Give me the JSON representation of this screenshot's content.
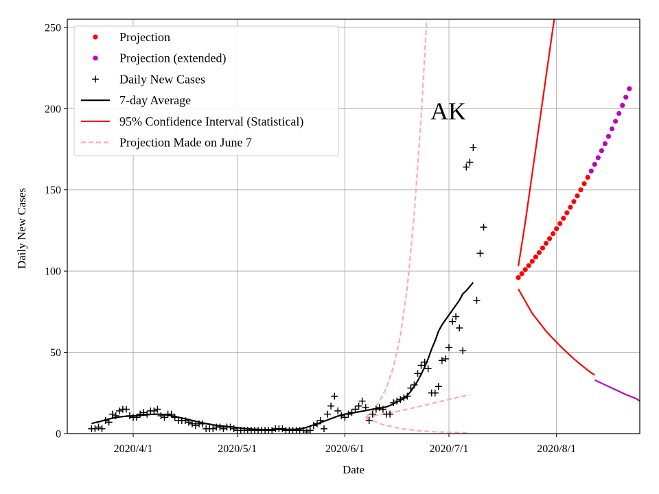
{
  "chart_data": {
    "type": "line",
    "title": "",
    "annotation": "AK",
    "xlabel": "Date",
    "ylabel": "Daily New Cases",
    "xlim": [
      "2020-03-13",
      "2020-08-25"
    ],
    "ylim": [
      0,
      255
    ],
    "grid": true,
    "legend_position": "top-left",
    "x_tick_labels": [
      "2020/4/1",
      "2020/5/1",
      "2020/6/1",
      "2020/7/1",
      "2020/8/1"
    ],
    "x_tick_dates": [
      "2020-04-01",
      "2020-05-01",
      "2020-06-01",
      "2020-07-01",
      "2020-08-01"
    ],
    "y_ticks": [
      0,
      50,
      100,
      150,
      200,
      250
    ],
    "colors": {
      "projection": "#ff0000",
      "projection_extended": "#bf00bf",
      "cases": "#000000",
      "average": "#000000",
      "ci": "#ff0000",
      "ci_extended": "#bf00bf",
      "june7": "#ffaaaa"
    },
    "legend": [
      {
        "label": "Projection",
        "kind": "dot",
        "color": "#ff0000"
      },
      {
        "label": "Projection (extended)",
        "kind": "dot",
        "color": "#bf00bf"
      },
      {
        "label": "Daily New Cases",
        "kind": "plus",
        "color": "#000000"
      },
      {
        "label": "7-day Average",
        "kind": "line",
        "color": "#000000"
      },
      {
        "label": "95% Confidence Interval (Statistical)",
        "kind": "line",
        "color": "#ff0000"
      },
      {
        "label": "Projection Made on June 7",
        "kind": "dash",
        "color": "#ffaaaa"
      }
    ],
    "daily_new_cases": {
      "start_date": "2020-03-20",
      "values": [
        3,
        3,
        4,
        3,
        8,
        7,
        12,
        11,
        14,
        15,
        15,
        11,
        10,
        10,
        12,
        13,
        12,
        14,
        14,
        15,
        11,
        10,
        12,
        12,
        10,
        8,
        8,
        8,
        7,
        6,
        5,
        6,
        6,
        3,
        3,
        3,
        4,
        4,
        3,
        4,
        4,
        3,
        2,
        2,
        2,
        2,
        2,
        2,
        2,
        2,
        2,
        2,
        2,
        3,
        3,
        3,
        2,
        2,
        2,
        2,
        2,
        2,
        1,
        2,
        5,
        6,
        8,
        3,
        12,
        17,
        23,
        14,
        11,
        10,
        12,
        13,
        15,
        17,
        20,
        16,
        8,
        12,
        15,
        16,
        15,
        12,
        12,
        19,
        20,
        21,
        22,
        23,
        28,
        30,
        37,
        42,
        44,
        40,
        25,
        25,
        29,
        45,
        46,
        53,
        69,
        72,
        65,
        51,
        164,
        167,
        176,
        82,
        111,
        127
      ]
    },
    "seven_day_average": {
      "start_date": "2020-03-20",
      "values": [
        6.2,
        6.8,
        7.2,
        7.8,
        8.5,
        9,
        9.5,
        9.9,
        10.2,
        10.5,
        10.7,
        10.8,
        10.9,
        11,
        11.2,
        11.4,
        11.6,
        11.8,
        11.9,
        12,
        11.9,
        11.7,
        11.4,
        11,
        10.6,
        10.1,
        9.6,
        9.1,
        8.6,
        8.1,
        7.6,
        7.1,
        6.6,
        6.2,
        5.8,
        5.4,
        5.1,
        4.8,
        4.6,
        4.4,
        4.2,
        4,
        3.7,
        3.4,
        3.2,
        3,
        2.8,
        2.7,
        2.6,
        2.5,
        2.5,
        2.5,
        2.5,
        2.5,
        2.6,
        2.6,
        2.6,
        2.6,
        2.6,
        2.7,
        2.9,
        3.3,
        3.9,
        4.6,
        5.3,
        6,
        6.8,
        7.6,
        8.4,
        9.2,
        10,
        10.8,
        11.5,
        12,
        12.3,
        12.6,
        13,
        13.4,
        13.8,
        14.2,
        14.6,
        15,
        15.3,
        15.6,
        16,
        16.5,
        17.3,
        18.3,
        19.4,
        20.5,
        21.7,
        23.5,
        26,
        29,
        32.5,
        36.5,
        41,
        46,
        52,
        57,
        63,
        67,
        70,
        73,
        76,
        79,
        82,
        86,
        88,
        90.5,
        93
      ]
    },
    "projection": {
      "start_date": "2020-07-21",
      "values": [
        96,
        98.4,
        100.9,
        103.4,
        106,
        108.7,
        111.4,
        114.2,
        117.1,
        120,
        123,
        126.1,
        129.3,
        132.5,
        135.9,
        139.3,
        142.8,
        146.3,
        150,
        153.8,
        157.7
      ]
    },
    "projection_extended": {
      "start_date": "2020-08-11",
      "values": [
        161.6,
        165.7,
        169.8,
        174.1,
        178.4,
        182.9,
        187.5,
        192.2,
        197,
        202,
        207,
        212.2
      ]
    },
    "ci_upper": {
      "start_date": "2020-07-21",
      "points": [
        [
          0,
          103
        ],
        [
          2,
          130
        ],
        [
          4,
          160
        ],
        [
          6,
          190
        ],
        [
          8,
          220
        ],
        [
          10,
          250
        ],
        [
          11,
          263
        ]
      ]
    },
    "ci_lower": {
      "start_date": "2020-07-21",
      "points": [
        [
          0,
          89
        ],
        [
          4,
          74
        ],
        [
          8,
          63
        ],
        [
          12,
          54
        ],
        [
          16,
          46
        ],
        [
          20,
          39
        ],
        [
          21,
          37.5
        ],
        [
          22,
          36
        ]
      ]
    },
    "ci_lower_extended": {
      "start_date": "2020-08-12",
      "points": [
        [
          0,
          33
        ],
        [
          3,
          30
        ],
        [
          6,
          27
        ],
        [
          9,
          24
        ],
        [
          12,
          21.5
        ],
        [
          13,
          20
        ]
      ]
    },
    "june7_upper": {
      "start_date": "2020-06-07",
      "points": [
        [
          0,
          10
        ],
        [
          2,
          14
        ],
        [
          4,
          20
        ],
        [
          6,
          28
        ],
        [
          8,
          41
        ],
        [
          10,
          60
        ],
        [
          12,
          90
        ],
        [
          14,
          135
        ],
        [
          16,
          195
        ],
        [
          18,
          270
        ]
      ]
    },
    "june7_mid": {
      "start_date": "2020-06-07",
      "points": [
        [
          0,
          10
        ],
        [
          5,
          12
        ],
        [
          10,
          14
        ],
        [
          15,
          16.5
        ],
        [
          20,
          19
        ],
        [
          25,
          21.5
        ],
        [
          30,
          24
        ]
      ]
    },
    "june7_lower": {
      "start_date": "2020-06-07",
      "points": [
        [
          0,
          9.5
        ],
        [
          5,
          5.5
        ],
        [
          10,
          3.2
        ],
        [
          15,
          1.8
        ],
        [
          20,
          1.1
        ],
        [
          25,
          0.8
        ],
        [
          30,
          0.5
        ]
      ]
    }
  }
}
